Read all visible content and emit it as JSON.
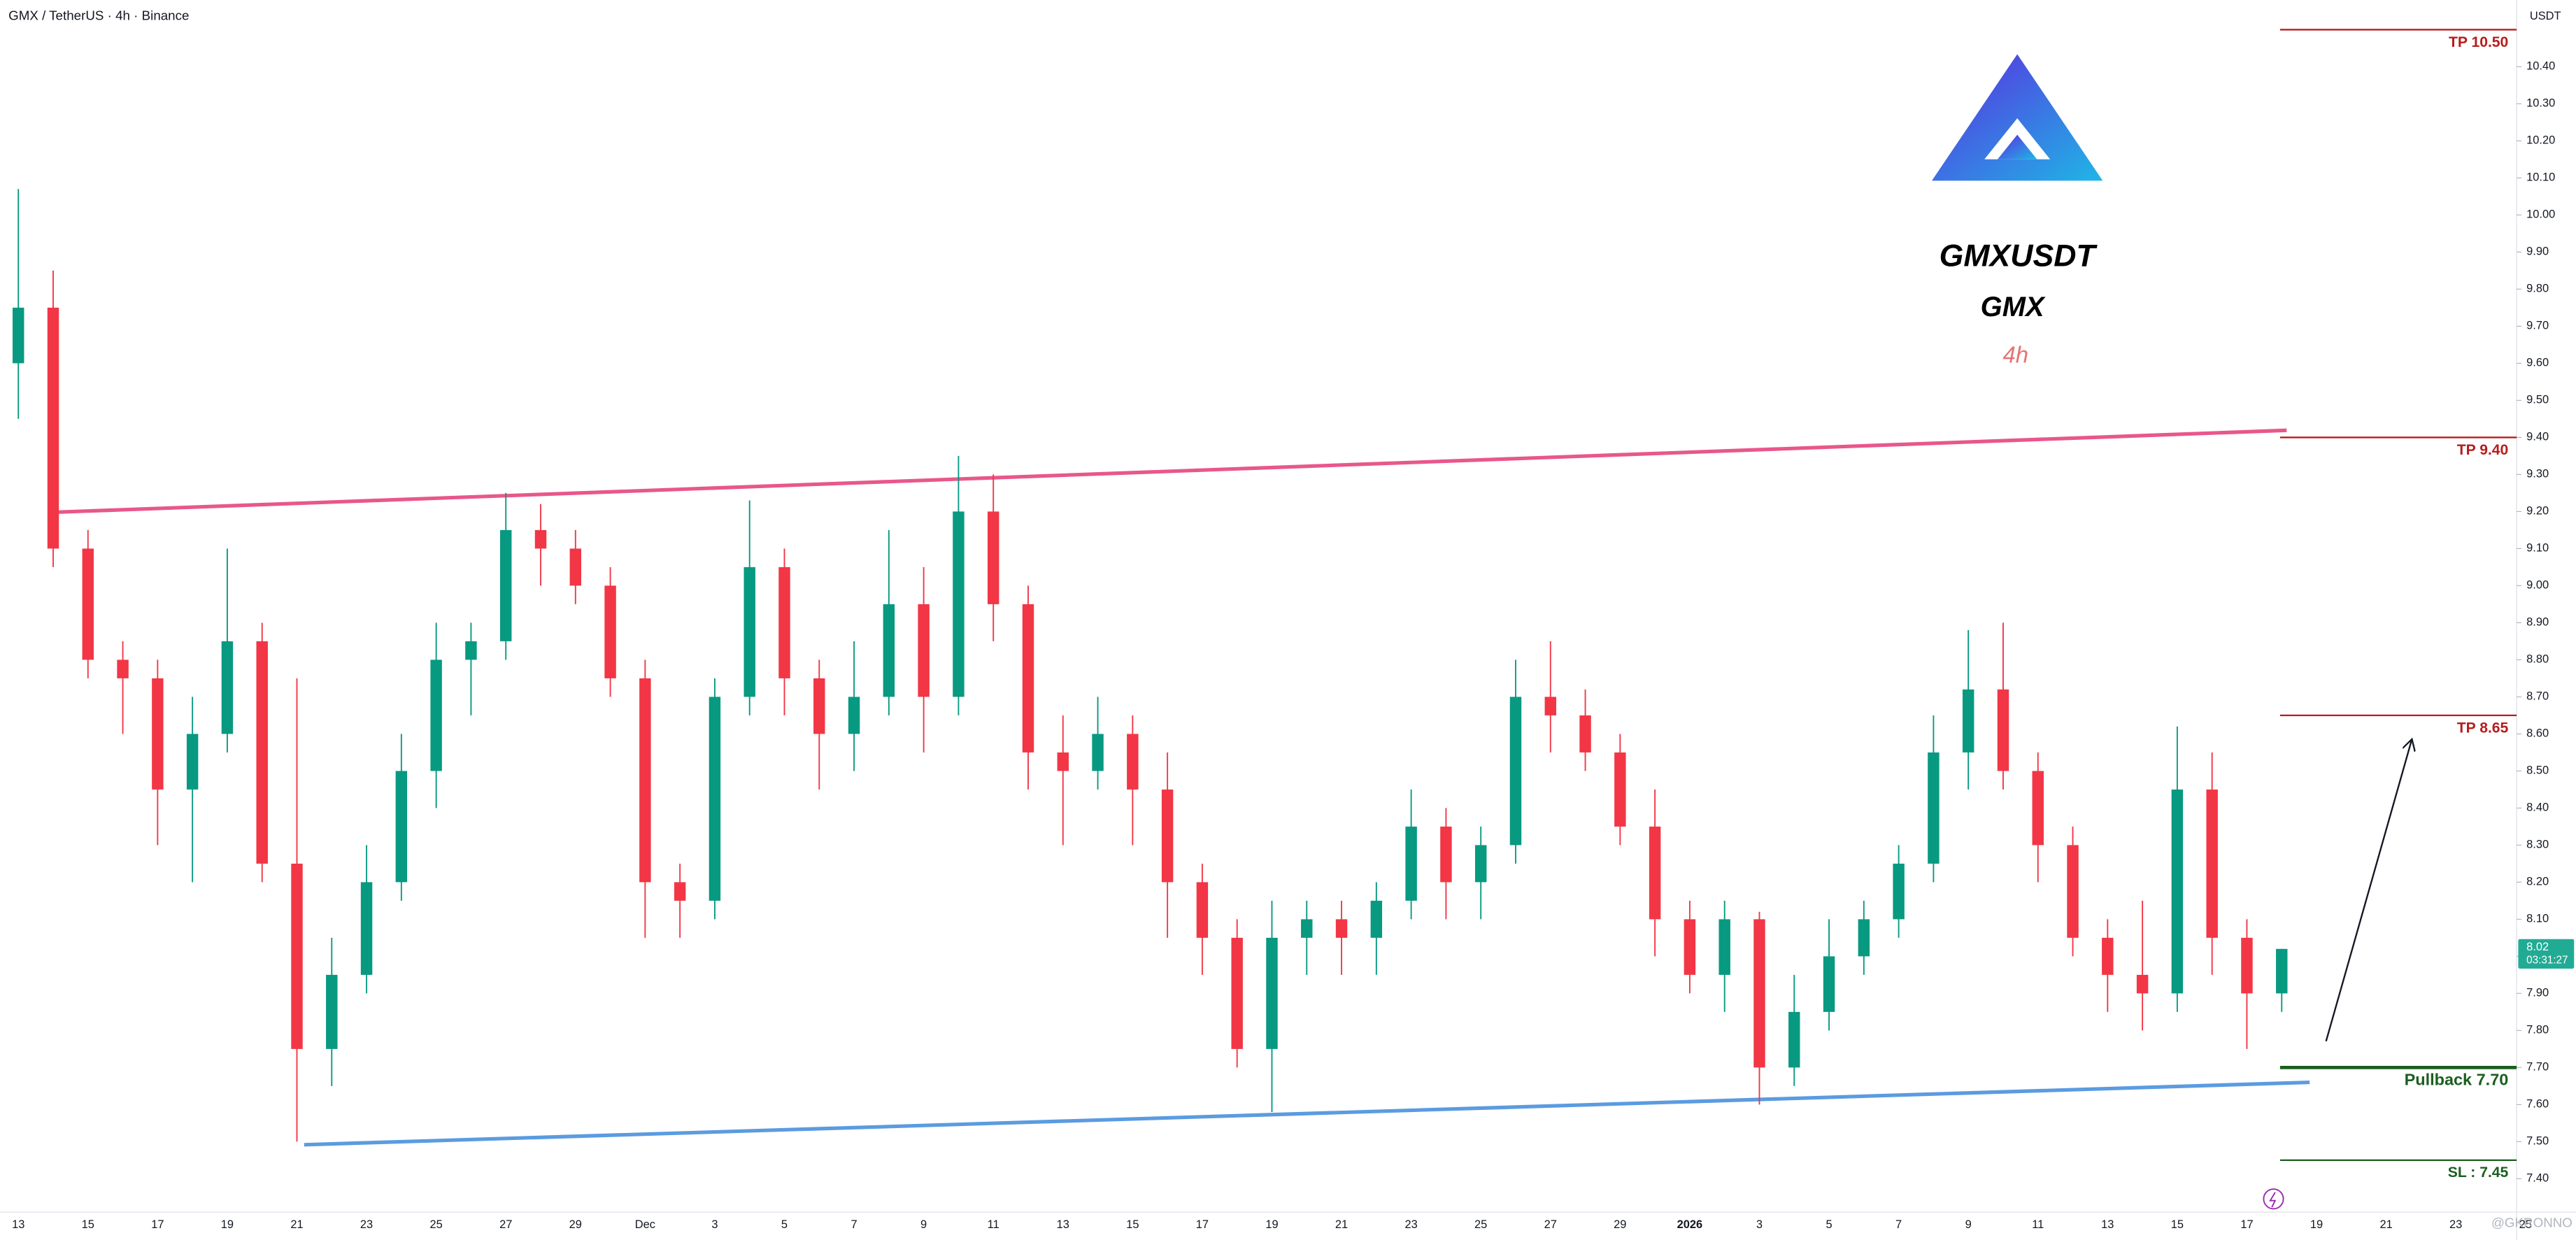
{
  "chart_data": {
    "type": "candlestick",
    "title": "GMX / TetherUS · 4h · Binance",
    "y_axis_label": "USDT",
    "symbol": "GMXUSDT",
    "name": "GMX",
    "timeframe": "4h",
    "watermark": "@GKRONNO",
    "x_labels": [
      "13",
      "15",
      "17",
      "19",
      "21",
      "23",
      "25",
      "27",
      "29",
      "Dec",
      "3",
      "5",
      "7",
      "9",
      "11",
      "13",
      "15",
      "17",
      "19",
      "21",
      "23",
      "25",
      "27",
      "29",
      "2026",
      "3",
      "5",
      "7",
      "9",
      "11",
      "13",
      "15",
      "17",
      "19",
      "21",
      "23",
      "25"
    ],
    "open": [
      9.6,
      9.75,
      9.1,
      8.8,
      8.75,
      8.45,
      8.6,
      8.85,
      8.25,
      7.75,
      7.95,
      8.2,
      8.5,
      8.8,
      8.85,
      9.15,
      9.1,
      9.0,
      8.75,
      8.2,
      8.15,
      8.7,
      9.05,
      8.75,
      8.6,
      8.7,
      8.95,
      8.7,
      9.2,
      8.95,
      8.55,
      8.5,
      8.6,
      8.45,
      8.2,
      8.05,
      7.75,
      8.05,
      8.1,
      8.05,
      8.15,
      8.35,
      8.2,
      8.3,
      8.7,
      8.65,
      8.55,
      8.35,
      8.1,
      7.95,
      8.1,
      7.7,
      7.85,
      8.0,
      8.1,
      8.25,
      8.55,
      8.72,
      8.5,
      8.3,
      8.05,
      7.95,
      7.9,
      8.45,
      8.05,
      7.9
    ],
    "high": [
      10.07,
      9.85,
      9.15,
      8.85,
      8.8,
      8.7,
      9.1,
      8.9,
      8.75,
      8.05,
      8.3,
      8.6,
      8.9,
      8.9,
      9.25,
      9.22,
      9.15,
      9.05,
      8.8,
      8.25,
      8.75,
      9.23,
      9.1,
      8.8,
      8.85,
      9.15,
      9.05,
      9.35,
      9.3,
      9.0,
      8.65,
      8.7,
      8.65,
      8.55,
      8.25,
      8.1,
      8.15,
      8.15,
      8.15,
      8.2,
      8.45,
      8.4,
      8.35,
      8.8,
      8.85,
      8.72,
      8.6,
      8.45,
      8.15,
      8.15,
      8.12,
      7.95,
      8.1,
      8.15,
      8.3,
      8.65,
      8.88,
      8.9,
      8.55,
      8.35,
      8.1,
      8.15,
      8.62,
      8.55,
      8.1,
      8.02
    ],
    "low": [
      9.45,
      9.05,
      8.75,
      8.6,
      8.3,
      8.2,
      8.55,
      8.2,
      7.5,
      7.65,
      7.9,
      8.15,
      8.4,
      8.65,
      8.8,
      9.0,
      8.95,
      8.7,
      8.05,
      8.05,
      8.1,
      8.65,
      8.65,
      8.45,
      8.5,
      8.65,
      8.55,
      8.65,
      8.85,
      8.45,
      8.3,
      8.45,
      8.3,
      8.05,
      7.95,
      7.7,
      7.58,
      7.95,
      7.95,
      7.95,
      8.1,
      8.1,
      8.1,
      8.25,
      8.55,
      8.5,
      8.3,
      8.0,
      7.9,
      7.85,
      7.6,
      7.65,
      7.8,
      7.95,
      8.05,
      8.2,
      8.45,
      8.45,
      8.2,
      8.0,
      7.85,
      7.8,
      7.85,
      7.95,
      7.75,
      7.85
    ],
    "close": [
      9.75,
      9.1,
      8.8,
      8.75,
      8.45,
      8.6,
      8.85,
      8.25,
      7.75,
      7.95,
      8.2,
      8.5,
      8.8,
      8.85,
      9.15,
      9.1,
      9.0,
      8.75,
      8.2,
      8.15,
      8.7,
      9.05,
      8.75,
      8.6,
      8.7,
      8.95,
      8.7,
      9.2,
      8.95,
      8.55,
      8.5,
      8.6,
      8.45,
      8.2,
      8.05,
      7.75,
      8.05,
      8.1,
      8.05,
      8.15,
      8.35,
      8.2,
      8.3,
      8.7,
      8.65,
      8.55,
      8.35,
      8.1,
      7.95,
      8.1,
      7.7,
      7.85,
      8.0,
      8.1,
      8.25,
      8.55,
      8.72,
      8.5,
      8.3,
      8.05,
      7.95,
      7.9,
      8.45,
      8.05,
      7.9,
      8.02
    ],
    "up_color": "#089981",
    "down_color": "#f23645",
    "ylim": [
      7.31,
      10.58
    ],
    "yticks": [
      {
        "value": 7.4,
        "label": "7.40"
      },
      {
        "value": 7.5,
        "label": "7.50"
      },
      {
        "value": 7.6,
        "label": "7.60"
      },
      {
        "value": 7.7,
        "label": "7.70"
      },
      {
        "value": 7.8,
        "label": "7.80"
      },
      {
        "value": 7.9,
        "label": "7.90"
      },
      {
        "value": 8.0,
        "label": "8.00"
      },
      {
        "value": 8.1,
        "label": "8.10"
      },
      {
        "value": 8.2,
        "label": "8.20"
      },
      {
        "value": 8.3,
        "label": "8.30"
      },
      {
        "value": 8.4,
        "label": "8.40"
      },
      {
        "value": 8.5,
        "label": "8.50"
      },
      {
        "value": 8.6,
        "label": "8.60"
      },
      {
        "value": 8.7,
        "label": "8.70"
      },
      {
        "value": 8.8,
        "label": "8.80"
      },
      {
        "value": 8.9,
        "label": "8.90"
      },
      {
        "value": 9.0,
        "label": "9.00"
      },
      {
        "value": 9.1,
        "label": "9.10"
      },
      {
        "value": 9.2,
        "label": "9.20"
      },
      {
        "value": 9.3,
        "label": "9.30"
      },
      {
        "value": 9.4,
        "label": "9.40"
      },
      {
        "value": 9.5,
        "label": "9.50"
      },
      {
        "value": 9.6,
        "label": "9.60"
      },
      {
        "value": 9.7,
        "label": "9.70"
      },
      {
        "value": 9.8,
        "label": "9.80"
      },
      {
        "value": 9.9,
        "label": "9.90"
      },
      {
        "value": 10.0,
        "label": "10.00"
      },
      {
        "value": 10.1,
        "label": "10.10"
      },
      {
        "value": 10.2,
        "label": "10.20"
      },
      {
        "value": 10.3,
        "label": "10.30"
      },
      {
        "value": 10.4,
        "label": "10.40"
      }
    ],
    "grid": false,
    "levels": [
      {
        "label": "TP 10.50",
        "value": 10.5,
        "color": "#b71c1c"
      },
      {
        "label": "TP 9.40",
        "value": 9.4,
        "color": "#b71c1c"
      },
      {
        "label": "TP 8.65",
        "value": 8.65,
        "color": "#b71c1c"
      },
      {
        "label": "Pullback 7.70",
        "value": 7.7,
        "color": "#1b5e20"
      },
      {
        "label": "SL : 7.45",
        "value": 7.45,
        "color": "#1b5e20"
      }
    ],
    "last_price": 8.02,
    "countdown": "03:31:27",
    "last_price_color": "#22ab94"
  }
}
